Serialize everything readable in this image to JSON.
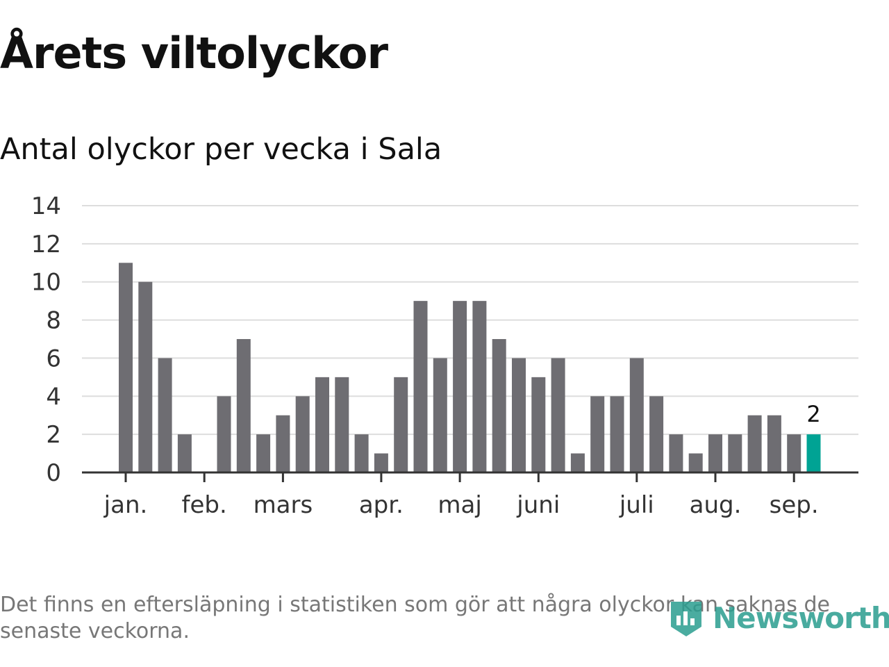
{
  "title": "Årets viltolyckor",
  "subtitle": "Antal olyckor per vecka i Sala",
  "footnote": "Det finns en eftersläpning i statistiken som gör att några olyckor kan saknas de senaste veckorna.",
  "logo": {
    "text": "Newsworthy",
    "icon": "newsworthy-logo-icon"
  },
  "colors": {
    "bar": "#6e6d72",
    "highlight": "#00a394",
    "grid": "#dddddd",
    "axis": "#333333",
    "text": "#333333"
  },
  "chart_data": {
    "type": "bar",
    "title": "Årets viltolyckor",
    "subtitle": "Antal olyckor per vecka i Sala",
    "values": [
      11,
      10,
      6,
      2,
      0,
      4,
      7,
      2,
      3,
      4,
      5,
      5,
      2,
      1,
      5,
      9,
      6,
      9,
      9,
      7,
      6,
      5,
      6,
      1,
      4,
      4,
      6,
      4,
      2,
      1,
      2,
      2,
      3,
      3,
      2,
      2
    ],
    "highlight_index": 35,
    "highlight_label": "2",
    "ylim": [
      0,
      14
    ],
    "yticks": [
      0,
      2,
      4,
      6,
      8,
      10,
      12,
      14
    ],
    "month_ticks": [
      {
        "label": "jan.",
        "pos": 0.0
      },
      {
        "label": "feb.",
        "pos": 4.0
      },
      {
        "label": "mars",
        "pos": 8.0
      },
      {
        "label": "apr.",
        "pos": 13.0
      },
      {
        "label": "maj",
        "pos": 17.0
      },
      {
        "label": "juni",
        "pos": 21.0
      },
      {
        "label": "juli",
        "pos": 26.0
      },
      {
        "label": "aug.",
        "pos": 30.0
      },
      {
        "label": "sep.",
        "pos": 34.0
      }
    ],
    "grid": true
  }
}
